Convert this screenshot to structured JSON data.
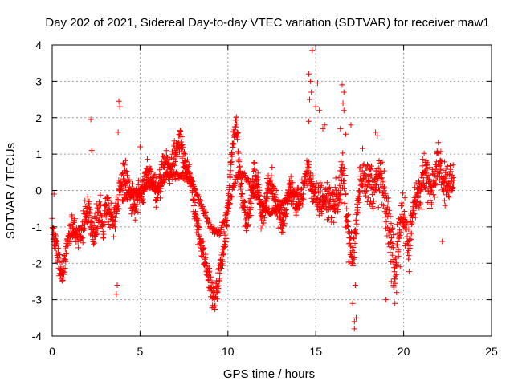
{
  "chart_data": {
    "type": "scatter",
    "title": "Day 202 of 2021, Sidereal Day-to-day VTEC variation (SDTVAR) for receiver maw1",
    "xlabel": "GPS time / hours",
    "ylabel": "SDTVAR / TECUs",
    "xlim": [
      0,
      25
    ],
    "ylim": [
      -4,
      4
    ],
    "xticks": [
      0,
      5,
      10,
      15,
      20,
      25
    ],
    "yticks": [
      -4,
      -3,
      -2,
      -1,
      0,
      1,
      2,
      3,
      4
    ],
    "xtick_labels": [
      "0",
      "5",
      "10",
      "15",
      "20",
      "25"
    ],
    "ytick_labels": [
      "-4",
      "-3",
      "-2",
      "-1",
      "0",
      "1",
      "2",
      "3",
      "4"
    ],
    "grid": true,
    "marker": "+",
    "color": "#ff0000",
    "series": [
      {
        "name": "maw1",
        "track": [
          [
            0.0,
            -1.1
          ],
          [
            0.2,
            -1.3
          ],
          [
            0.4,
            -2.0
          ],
          [
            0.6,
            -2.4
          ],
          [
            0.8,
            -1.6
          ],
          [
            1.0,
            -1.2
          ],
          [
            1.3,
            -1.0
          ],
          [
            1.6,
            -1.3
          ],
          [
            1.9,
            -0.7
          ],
          [
            2.1,
            -0.4
          ],
          [
            2.3,
            -1.3
          ],
          [
            2.5,
            -0.8
          ],
          [
            2.7,
            -0.5
          ],
          [
            2.9,
            -1.0
          ],
          [
            3.1,
            -0.3
          ],
          [
            3.3,
            -0.6
          ],
          [
            3.5,
            -0.9
          ],
          [
            3.7,
            -0.6
          ],
          [
            3.9,
            0.2
          ],
          [
            4.1,
            0.5
          ],
          [
            4.3,
            0.1
          ],
          [
            4.5,
            -0.2
          ],
          [
            4.7,
            -0.6
          ],
          [
            4.9,
            -0.1
          ],
          [
            5.1,
            -0.3
          ],
          [
            5.3,
            0.3
          ],
          [
            5.5,
            0.6
          ],
          [
            5.7,
            0.2
          ],
          [
            5.9,
            0.0
          ],
          [
            6.1,
            0.2
          ],
          [
            6.3,
            0.6
          ],
          [
            6.5,
            0.8
          ],
          [
            6.7,
            0.5
          ],
          [
            6.9,
            0.9
          ],
          [
            7.1,
            1.2
          ],
          [
            7.3,
            1.5
          ],
          [
            7.5,
            0.9
          ],
          [
            7.7,
            0.5
          ],
          [
            7.9,
            0.2
          ],
          [
            8.1,
            -0.4
          ],
          [
            8.3,
            -1.1
          ],
          [
            8.5,
            -1.6
          ],
          [
            8.7,
            -2.0
          ],
          [
            8.9,
            -2.4
          ],
          [
            9.1,
            -2.8
          ],
          [
            9.3,
            -3.0
          ],
          [
            9.5,
            -2.3
          ],
          [
            9.7,
            -1.8
          ],
          [
            9.9,
            -1.2
          ],
          [
            10.1,
            0.2
          ],
          [
            10.3,
            1.5
          ],
          [
            10.5,
            1.8
          ],
          [
            10.7,
            0.3
          ],
          [
            10.9,
            -0.4
          ],
          [
            11.1,
            -0.9
          ],
          [
            11.3,
            -0.3
          ],
          [
            11.5,
            0.5
          ],
          [
            11.7,
            0.2
          ],
          [
            11.9,
            -0.7
          ],
          [
            12.1,
            -0.5
          ],
          [
            12.3,
            0.1
          ],
          [
            12.5,
            0.2
          ],
          [
            12.7,
            -0.2
          ],
          [
            12.9,
            -0.6
          ],
          [
            13.1,
            -0.9
          ],
          [
            13.3,
            -0.5
          ],
          [
            13.5,
            0.1
          ],
          [
            13.7,
            -0.1
          ],
          [
            13.9,
            -0.5
          ],
          [
            14.1,
            -0.2
          ],
          [
            14.3,
            0.0
          ],
          [
            14.5,
            0.6
          ],
          [
            14.7,
            0.3
          ],
          [
            14.9,
            -0.1
          ],
          [
            15.1,
            -0.4
          ],
          [
            15.3,
            -0.2
          ],
          [
            15.5,
            -0.3
          ],
          [
            15.7,
            -0.2
          ],
          [
            15.9,
            -0.4
          ],
          [
            16.1,
            -0.3
          ],
          [
            16.3,
            -0.2
          ],
          [
            16.5,
            0.5
          ],
          [
            16.7,
            -0.3
          ],
          [
            16.9,
            -1.4
          ],
          [
            17.1,
            -1.9
          ],
          [
            17.3,
            -0.9
          ],
          [
            17.5,
            0.3
          ],
          [
            17.7,
            0.6
          ],
          [
            17.9,
            0.1
          ],
          [
            18.1,
            0.3
          ],
          [
            18.3,
            0.0
          ],
          [
            18.5,
            0.2
          ],
          [
            18.7,
            0.4
          ],
          [
            18.9,
            -0.3
          ],
          [
            19.1,
            -0.8
          ],
          [
            19.3,
            -1.3
          ],
          [
            19.5,
            -2.2
          ],
          [
            19.7,
            -1.4
          ],
          [
            19.9,
            -0.4
          ],
          [
            20.1,
            -1.1
          ],
          [
            20.3,
            -1.7
          ],
          [
            20.5,
            -0.6
          ],
          [
            20.7,
            0.0
          ],
          [
            20.9,
            -0.2
          ],
          [
            21.1,
            0.3
          ],
          [
            21.3,
            0.5
          ],
          [
            21.5,
            0.0
          ],
          [
            21.7,
            0.3
          ],
          [
            21.9,
            0.9
          ],
          [
            22.1,
            0.7
          ],
          [
            22.3,
            0.1
          ],
          [
            22.5,
            0.2
          ],
          [
            22.7,
            0.4
          ],
          [
            22.85,
            0.3
          ]
        ],
        "spread_track": [
          [
            0.0,
            0.3
          ],
          [
            3.0,
            0.4
          ],
          [
            9.0,
            0.3
          ],
          [
            14.0,
            0.3
          ],
          [
            15.0,
            0.4
          ],
          [
            17.0,
            0.5
          ],
          [
            19.5,
            0.6
          ],
          [
            22.85,
            0.4
          ]
        ],
        "second_branch": [
          [
            4.0,
            -0.2
          ],
          [
            4.5,
            -0.1
          ],
          [
            5.0,
            0.0
          ],
          [
            5.5,
            0.2
          ],
          [
            6.0,
            0.0
          ],
          [
            6.5,
            0.4
          ],
          [
            7.0,
            0.4
          ],
          [
            7.5,
            0.4
          ],
          [
            8.0,
            0.2
          ],
          [
            8.5,
            -0.4
          ],
          [
            9.0,
            -1.0
          ],
          [
            9.5,
            -1.2
          ],
          [
            10.0,
            -0.5
          ],
          [
            10.5,
            0.4
          ],
          [
            11.0,
            0.4
          ],
          [
            11.5,
            -0.1
          ],
          [
            12.0,
            -0.4
          ],
          [
            12.5,
            -0.6
          ],
          [
            13.0,
            -0.4
          ],
          [
            13.5,
            -0.1
          ],
          [
            14.0,
            0.0
          ]
        ],
        "outliers": [
          [
            2.2,
            1.95
          ],
          [
            2.25,
            1.1
          ],
          [
            3.8,
            2.45
          ],
          [
            3.85,
            2.3
          ],
          [
            3.75,
            1.6
          ],
          [
            3.7,
            -2.6
          ],
          [
            3.65,
            -2.85
          ],
          [
            5.0,
            1.2
          ],
          [
            14.6,
            3.2
          ],
          [
            14.7,
            3.0
          ],
          [
            14.75,
            2.7
          ],
          [
            14.8,
            3.85
          ],
          [
            14.65,
            2.5
          ],
          [
            14.6,
            1.9
          ],
          [
            15.1,
            2.95
          ],
          [
            15.2,
            2.2
          ],
          [
            15.5,
            1.8
          ],
          [
            15.4,
            1.7
          ],
          [
            16.5,
            2.9
          ],
          [
            16.6,
            2.7
          ],
          [
            16.55,
            2.4
          ],
          [
            16.6,
            2.2
          ],
          [
            16.7,
            1.55
          ],
          [
            17.0,
            1.8
          ],
          [
            17.2,
            -3.6
          ],
          [
            17.2,
            -3.8
          ],
          [
            17.1,
            -3.1
          ],
          [
            17.3,
            -3.5
          ],
          [
            17.25,
            -2.6
          ],
          [
            18.4,
            1.6
          ],
          [
            18.5,
            1.5
          ],
          [
            19.0,
            -3.0
          ],
          [
            19.5,
            -3.1
          ],
          [
            19.6,
            -2.8
          ],
          [
            19.8,
            -2.1
          ],
          [
            16.4,
            1.7
          ],
          [
            15.0,
            2.3
          ],
          [
            22.2,
            -1.4
          ],
          [
            19.3,
            -2.5
          ],
          [
            0.1,
            -0.1
          ]
        ]
      }
    ]
  }
}
